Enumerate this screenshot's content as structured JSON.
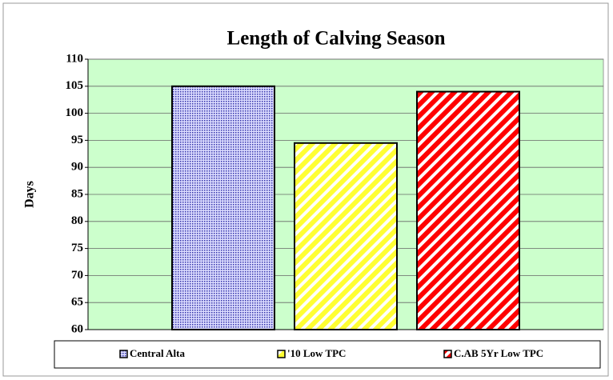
{
  "chart_data": {
    "type": "bar",
    "title": "Length of Calving Season",
    "ylabel": "Days",
    "categories": [
      null
    ],
    "series": [
      {
        "name": "Central Alta",
        "color": "#3333aa",
        "pattern": "dots",
        "values": [
          105
        ]
      },
      {
        "name": "'10 Low TPC",
        "color": "#ffff33",
        "pattern": "stripes",
        "values": [
          94.5
        ]
      },
      {
        "name": "C.AB 5Yr Low TPC",
        "color": "#ff0000",
        "pattern": "stripes",
        "values": [
          104
        ]
      }
    ],
    "ylim": [
      60,
      110
    ],
    "yticks": [
      60,
      65,
      70,
      75,
      80,
      85,
      90,
      95,
      100,
      105,
      110
    ],
    "grid": true,
    "legend": "bottom"
  }
}
